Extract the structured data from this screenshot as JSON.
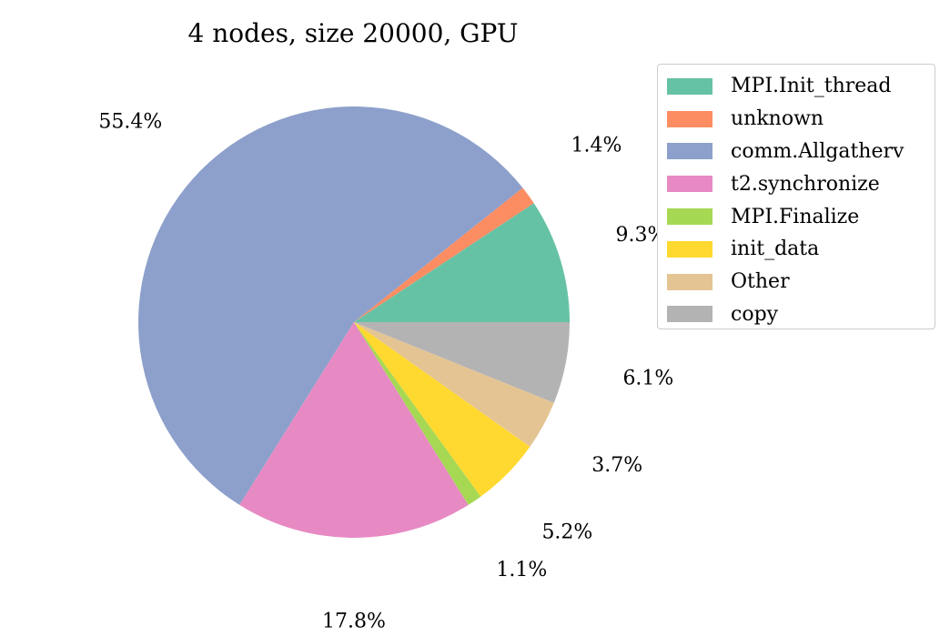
{
  "chart_data": {
    "type": "pie",
    "title": "4 nodes, size 20000, GPU",
    "slices": [
      {
        "label": "MPI.Init_thread",
        "value": 9.3,
        "display": "9.3%",
        "color": "#66c2a5"
      },
      {
        "label": "unknown",
        "value": 1.4,
        "display": "1.4%",
        "color": "#fc8d62"
      },
      {
        "label": "comm.Allgatherv",
        "value": 55.4,
        "display": "55.4%",
        "color": "#8da0cb"
      },
      {
        "label": "t2.synchronize",
        "value": 17.8,
        "display": "17.8%",
        "color": "#e78ac3"
      },
      {
        "label": "MPI.Finalize",
        "value": 1.1,
        "display": "1.1%",
        "color": "#a6d854"
      },
      {
        "label": "init_data",
        "value": 5.2,
        "display": "5.2%",
        "color": "#ffd92f"
      },
      {
        "label": "Other",
        "value": 3.7,
        "display": "3.7%",
        "color": "#e5c494"
      },
      {
        "label": "copy",
        "value": 6.1,
        "display": "6.1%",
        "color": "#b3b3b3"
      }
    ],
    "start_angle_deg": 0,
    "direction": "counterclockwise",
    "legend_position": "upper-right, outside"
  }
}
